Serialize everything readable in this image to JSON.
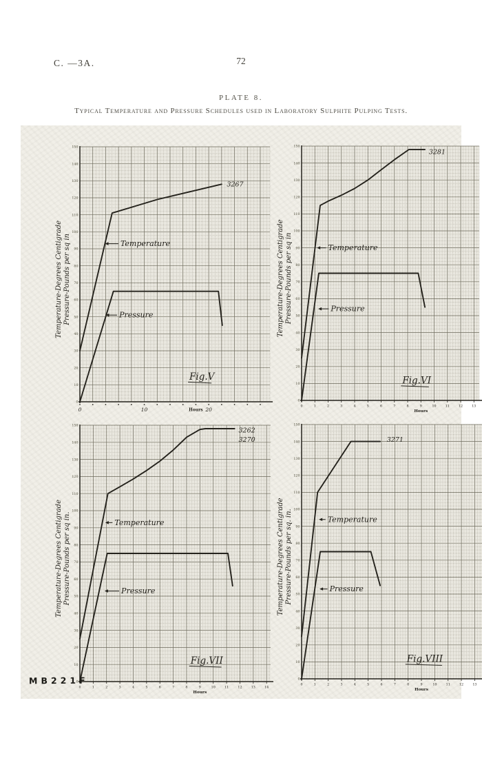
{
  "header": {
    "left_ref": "C. —3A.",
    "page_number": "72",
    "plate": "PLATE 8.",
    "subtitle": "Typical Temperature and Pressure Schedules used in Laboratory Sulphite Pulping Tests."
  },
  "footer": {
    "mark": "MB221F"
  },
  "colors": {
    "ink": "#24221c",
    "grid_minor": "#a8a497",
    "grid_major": "#6f6c5e",
    "paper": "#e9e7df"
  },
  "chart_data": [
    {
      "id": "fig-v",
      "type": "line",
      "caption": {
        "text": "Fig.V",
        "x": 17,
        "y": 13
      },
      "ylabel_line1": "Temperature-Degrees Centigrade",
      "ylabel_line2": "Pressure-Pounds per sq in",
      "xlabel": "Hours",
      "xlabel_at": 18,
      "grid": true,
      "xlim": [
        0,
        29.5
      ],
      "ylim": [
        0,
        150
      ],
      "y_tick_step": 10,
      "y_minor_step": 2,
      "x_major_step": 2,
      "x_minor_step": 0.5,
      "handwritten_x": true,
      "x_ticks": [
        {
          "v": 0,
          "t": "0"
        },
        {
          "v": 10,
          "t": "10"
        },
        {
          "v": 20,
          "t": "20"
        }
      ],
      "series": [
        {
          "name": "Temperature",
          "points": [
            [
              0,
              30
            ],
            [
              5,
              111
            ],
            [
              12,
              119
            ],
            [
              22,
              128
            ]
          ]
        },
        {
          "name": "Pressure",
          "points": [
            [
              0,
              0
            ],
            [
              5.2,
              65
            ],
            [
              21.5,
              65
            ],
            [
              22.1,
              45
            ]
          ]
        }
      ],
      "pointer_labels": [
        {
          "text": "Temperature",
          "x": 6.3,
          "y": 93,
          "to": [
            3.9,
            93
          ]
        },
        {
          "text": "Pressure",
          "x": 6.1,
          "y": 51,
          "to": [
            4.0,
            51
          ]
        }
      ],
      "curve_ids": [
        {
          "text": "3267",
          "x": 22.8,
          "y": 128
        }
      ]
    },
    {
      "id": "fig-vi",
      "type": "line",
      "caption": {
        "text": "Fig.VI",
        "x": 7.6,
        "y": 10
      },
      "ylabel_line1": "Temperature-Degrees Centigrade",
      "ylabel_line2": "Pressure-Pounds per sq in",
      "xlabel": "Hours",
      "xlabel_at": 9,
      "grid": true,
      "xlim": [
        0,
        13.4
      ],
      "ylim": [
        0,
        150
      ],
      "y_tick_step": 10,
      "y_minor_step": 2,
      "x_major_step": 1,
      "x_minor_step": 0.2,
      "handwritten_x": false,
      "x_ticks": [
        0,
        1,
        2,
        3,
        4,
        5,
        6,
        7,
        8,
        9,
        10,
        11,
        12,
        13
      ],
      "series": [
        {
          "name": "Temperature",
          "points": [
            [
              0,
              25
            ],
            [
              1.4,
              115
            ],
            [
              2,
              117.5
            ],
            [
              3,
              121
            ],
            [
              4,
              125
            ],
            [
              5,
              130
            ],
            [
              6,
              136
            ],
            [
              7,
              142
            ],
            [
              8.1,
              148
            ],
            [
              9.3,
              148
            ]
          ]
        },
        {
          "name": "Pressure",
          "points": [
            [
              0,
              0
            ],
            [
              1.3,
              75
            ],
            [
              8.8,
              75
            ],
            [
              9.3,
              55
            ]
          ]
        }
      ],
      "pointer_labels": [
        {
          "text": "Temperature",
          "x": 2.0,
          "y": 90,
          "to": [
            1.15,
            90
          ]
        },
        {
          "text": "Pressure",
          "x": 2.2,
          "y": 54,
          "to": [
            1.25,
            54
          ]
        }
      ],
      "curve_ids": [
        {
          "text": "3281",
          "x": 9.6,
          "y": 146.5
        }
      ]
    },
    {
      "id": "fig-vii",
      "type": "line",
      "caption": {
        "text": "Fig.VII",
        "x": 8.3,
        "y": 10.5
      },
      "ylabel_line1": "Temperature-Degrees Centigrade",
      "ylabel_line2": "Pressure-Pounds per sq in.",
      "xlabel": "Hours",
      "xlabel_at": 9,
      "grid": true,
      "xlim": [
        0,
        14.3
      ],
      "ylim": [
        0,
        150
      ],
      "y_tick_step": 10,
      "y_minor_step": 2,
      "x_major_step": 1,
      "x_minor_step": 0.2,
      "handwritten_x": false,
      "x_ticks": [
        0,
        1,
        2,
        3,
        4,
        5,
        6,
        7,
        8,
        9,
        10,
        11,
        12,
        13,
        14
      ],
      "series": [
        {
          "name": "Temperature",
          "points": [
            [
              0,
              25
            ],
            [
              2.1,
              110
            ],
            [
              3,
              114
            ],
            [
              4,
              118.5
            ],
            [
              5,
              123.5
            ],
            [
              6,
              129
            ],
            [
              7,
              135.5
            ],
            [
              8,
              143
            ],
            [
              9,
              147.5
            ],
            [
              9.4,
              148
            ],
            [
              11.6,
              148
            ]
          ]
        },
        {
          "name": "Pressure",
          "points": [
            [
              0,
              0
            ],
            [
              2.05,
              75
            ],
            [
              11.1,
              75
            ],
            [
              11.45,
              56
            ]
          ]
        }
      ],
      "pointer_labels": [
        {
          "text": "Temperature",
          "x": 2.6,
          "y": 93,
          "to": [
            1.9,
            93
          ]
        },
        {
          "text": "Pressure",
          "x": 3.1,
          "y": 53,
          "to": [
            1.85,
            53
          ]
        }
      ],
      "curve_ids": [
        {
          "text": "3262",
          "x": 11.9,
          "y": 147
        },
        {
          "text": "3270",
          "x": 11.9,
          "y": 141.5
        }
      ]
    },
    {
      "id": "fig-viii",
      "type": "line",
      "caption": {
        "text": "Fig.VIII",
        "x": 7.9,
        "y": 10
      },
      "ylabel_line1": "Temperature-Degrees Centigrade",
      "ylabel_line2": "Pressure-Pounds per sq. in.",
      "xlabel": "Hours",
      "xlabel_at": 9,
      "grid": true,
      "xlim": [
        0,
        13.6
      ],
      "ylim": [
        0,
        150
      ],
      "y_tick_step": 10,
      "y_minor_step": 2,
      "x_major_step": 1,
      "x_minor_step": 0.2,
      "handwritten_x": false,
      "x_ticks": [
        0,
        1,
        2,
        3,
        4,
        5,
        6,
        7,
        8,
        9,
        10,
        11,
        12,
        13
      ],
      "series": [
        {
          "name": "Temperature",
          "points": [
            [
              0,
              25
            ],
            [
              1.2,
              110
            ],
            [
              3.7,
              140
            ],
            [
              5.9,
              140
            ]
          ]
        },
        {
          "name": "Pressure",
          "points": [
            [
              0,
              0
            ],
            [
              1.4,
              75
            ],
            [
              5.2,
              75
            ],
            [
              5.9,
              55
            ]
          ]
        }
      ],
      "pointer_labels": [
        {
          "text": "Temperature",
          "x": 1.95,
          "y": 94,
          "to": [
            1.3,
            94
          ]
        },
        {
          "text": "Pressure",
          "x": 2.1,
          "y": 53,
          "to": [
            1.35,
            53
          ]
        }
      ],
      "curve_ids": [
        {
          "text": "3271",
          "x": 6.4,
          "y": 141
        }
      ]
    }
  ]
}
